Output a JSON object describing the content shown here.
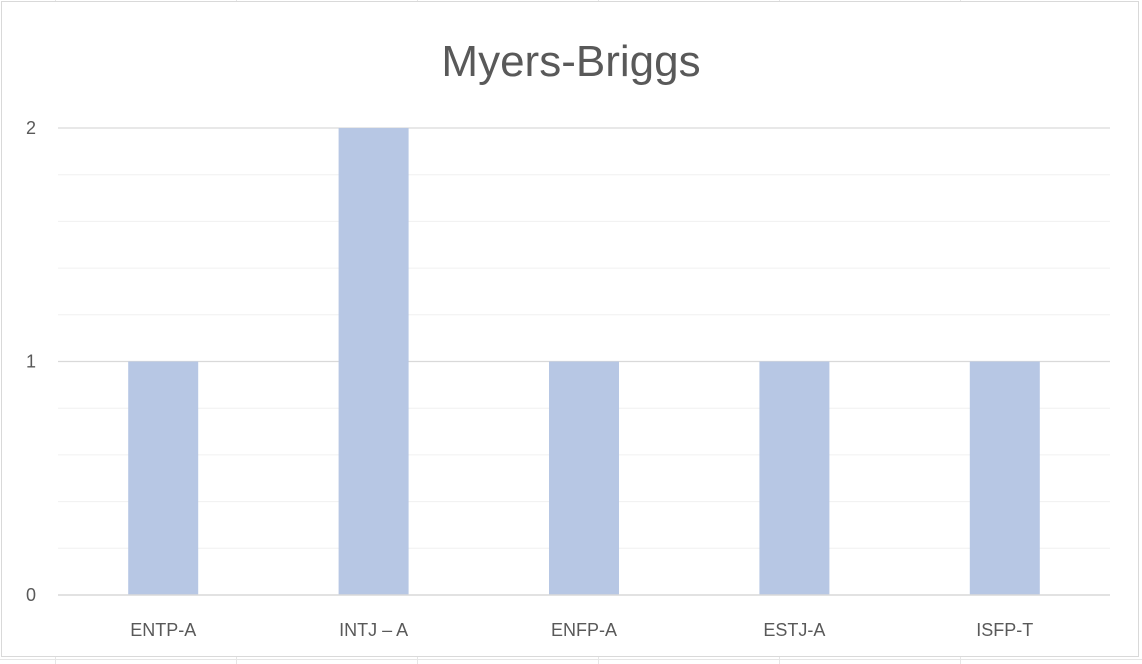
{
  "chart_data": {
    "type": "bar",
    "title": "Myers-Briggs",
    "xlabel": "",
    "ylabel": "",
    "categories": [
      "ENTP-A",
      "INTJ – A",
      "ENFP-A",
      "ESTJ-A",
      "ISFP-T"
    ],
    "values": [
      1,
      2,
      1,
      1,
      1
    ],
    "yticks": [
      "0",
      "1",
      "2"
    ],
    "ylim": [
      0,
      2
    ],
    "grid": true,
    "legend": "none",
    "bar_color": "#B7C7E4",
    "gridline_color": "#D9D9D9",
    "minor_gridline_color": "#F0F0F0"
  }
}
